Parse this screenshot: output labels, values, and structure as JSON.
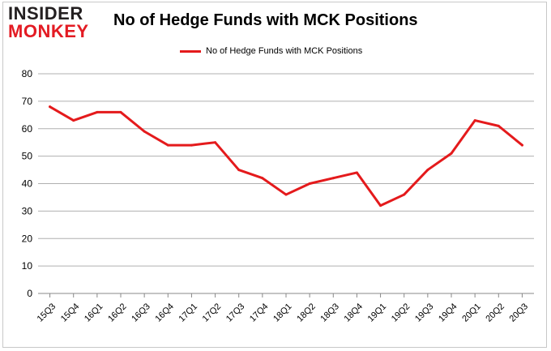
{
  "logo": {
    "line1": "INSIDER",
    "line2": "MONKEY"
  },
  "chart_data": {
    "type": "line",
    "title": "No of Hedge Funds with MCK Positions",
    "xlabel": "",
    "ylabel": "",
    "ylim": [
      0,
      80
    ],
    "yticks": [
      0,
      10,
      20,
      30,
      40,
      50,
      60,
      70,
      80
    ],
    "grid": true,
    "legend_position": "top-center",
    "categories": [
      "15Q3",
      "15Q4",
      "16Q1",
      "16Q2",
      "16Q3",
      "16Q4",
      "17Q1",
      "17Q2",
      "17Q3",
      "17Q4",
      "18Q1",
      "18Q2",
      "18Q3",
      "18Q4",
      "19Q1",
      "19Q2",
      "19Q3",
      "19Q4",
      "20Q1",
      "20Q2",
      "20Q3"
    ],
    "series": [
      {
        "name": "No of Hedge Funds with MCK Positions",
        "color": "#e41a1c",
        "values": [
          68,
          63,
          66,
          66,
          59,
          54,
          54,
          55,
          45,
          42,
          36,
          40,
          42,
          44,
          32,
          36,
          45,
          51,
          63,
          61,
          54
        ]
      }
    ]
  }
}
